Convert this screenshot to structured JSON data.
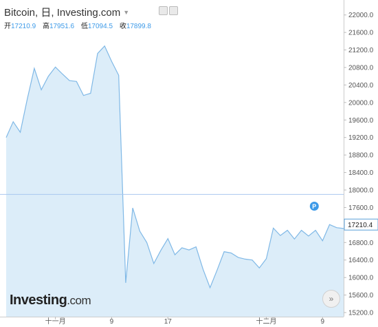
{
  "header": {
    "title": "Bitcoin, 日, Investing.com",
    "open_label": "开",
    "open_value": "17210.9",
    "high_label": "高",
    "high_value": "17951.6",
    "low_label": "低",
    "low_value": "17094.5",
    "close_label": "收",
    "close_value": "17899.8"
  },
  "logo": {
    "brand": "Investing",
    "domain": ".com"
  },
  "colors": {
    "line": "#7fb8e6",
    "fill": "#dcedf9",
    "accent": "#3d9ae8",
    "hline": "#a9c7ef"
  },
  "chart_data": {
    "type": "area",
    "y_ticks": [
      15200,
      15600,
      16000,
      16400,
      16800,
      17200,
      17600,
      18000,
      18400,
      18800,
      19200,
      19600,
      20000,
      20400,
      20800,
      21200,
      21600,
      22000
    ],
    "y_tick_labels": [
      "15200.0",
      "15600.0",
      "16000.0",
      "16400.0",
      "16800.0",
      "17200.0",
      "17600.0",
      "18000.0",
      "18400.0",
      "18800.0",
      "19200.0",
      "19600.0",
      "20000.0",
      "20400.0",
      "20800.0",
      "21200.0",
      "21600.0",
      "22000.0"
    ],
    "ylim": [
      15200,
      22200
    ],
    "x_labels": [
      "十一月",
      "9",
      "17",
      "十二月",
      "9"
    ],
    "x_label_dates": [
      "2022-11-01",
      "2022-11-09",
      "2022-11-17",
      "2022-12-01",
      "2022-12-09"
    ],
    "x_range": [
      "2022-10-25",
      "2022-12-12"
    ],
    "dates": [
      "2022-10-25",
      "2022-10-26",
      "2022-10-27",
      "2022-10-28",
      "2022-10-29",
      "2022-10-30",
      "2022-10-31",
      "2022-11-01",
      "2022-11-02",
      "2022-11-03",
      "2022-11-04",
      "2022-11-05",
      "2022-11-06",
      "2022-11-07",
      "2022-11-08",
      "2022-11-09",
      "2022-11-10",
      "2022-11-11",
      "2022-11-12",
      "2022-11-13",
      "2022-11-14",
      "2022-11-15",
      "2022-11-16",
      "2022-11-17",
      "2022-11-18",
      "2022-11-19",
      "2022-11-20",
      "2022-11-21",
      "2022-11-22",
      "2022-11-23",
      "2022-11-24",
      "2022-11-25",
      "2022-11-26",
      "2022-11-27",
      "2022-11-28",
      "2022-11-29",
      "2022-11-30",
      "2022-12-01",
      "2022-12-02",
      "2022-12-03",
      "2022-12-04",
      "2022-12-05",
      "2022-12-06",
      "2022-12-07",
      "2022-12-08",
      "2022-12-09",
      "2022-12-10",
      "2022-12-11",
      "2022-12-12"
    ],
    "values": [
      19200,
      19560,
      19320,
      20080,
      20780,
      20290,
      20600,
      20810,
      20650,
      20500,
      20480,
      20160,
      20210,
      21120,
      21290,
      20940,
      20620,
      15880,
      17590,
      17060,
      16800,
      16320,
      16620,
      16890,
      16520,
      16680,
      16630,
      16700,
      16190,
      15770,
      16170,
      16590,
      16560,
      16460,
      16420,
      16400,
      16220,
      16430,
      17130,
      16960,
      17080,
      16880,
      17080,
      16950,
      17080,
      16840,
      17210,
      17140,
      17120
    ],
    "last_price": 17210.4,
    "last_price_label": "17210.4",
    "horizontal_line": 17900,
    "marker_label": "P",
    "marker_date": "2022-12-09",
    "marker_value": 17630,
    "grid": false,
    "axis_position": "right"
  }
}
